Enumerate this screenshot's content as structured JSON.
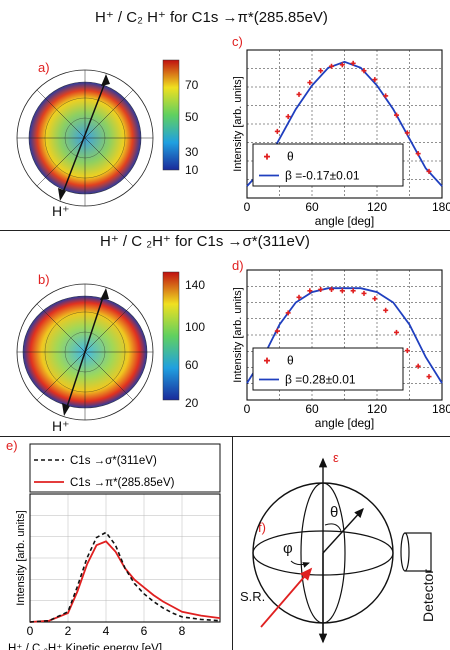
{
  "titles": {
    "top": "H⁺ / C₂ H⁺ for C1s →π*(285.85eV)",
    "middle": "H⁺ / C ₂H⁺ for C1s →σ*(311eV)"
  },
  "panel_labels": {
    "a": "a)",
    "b": "b)",
    "c": "c)",
    "d": "d)",
    "e": "e)",
    "f": "f)"
  },
  "colors": {
    "red_marker": "#e02020",
    "blue_fit": "#1f3fbf",
    "panel_label": "#e02020"
  },
  "panel_a": {
    "ion_label": "H⁺",
    "colorbar_ticks": [
      "70",
      "50",
      "30",
      "10"
    ]
  },
  "panel_b": {
    "ion_label": "H⁺",
    "colorbar_ticks": [
      "140",
      "100",
      "60",
      "20"
    ]
  },
  "panel_f": {
    "epsilon": "ε",
    "theta": "θ",
    "phi": "φ",
    "sr": "S.R.",
    "detector": "Detector"
  },
  "chart_data": [
    {
      "id": "c",
      "type": "scatter",
      "xlabel": "angle [deg]",
      "ylabel": "Intensity [arb. units]",
      "xlim": [
        0,
        180
      ],
      "ylim": [
        0,
        1.0
      ],
      "xticks": [
        "0",
        "60",
        "120",
        "180"
      ],
      "grid": true,
      "legend": {
        "placement": "bottom-left",
        "entries": [
          "θ",
          "β =-0.17±0.01"
        ]
      },
      "series": [
        {
          "name": "θ",
          "style": "points",
          "x": [
            8,
            18,
            28,
            38,
            48,
            58,
            68,
            78,
            88,
            98,
            108,
            118,
            128,
            138,
            148,
            158,
            168
          ],
          "y": [
            0.17,
            0.26,
            0.45,
            0.55,
            0.7,
            0.78,
            0.86,
            0.89,
            0.9,
            0.91,
            0.86,
            0.8,
            0.69,
            0.56,
            0.44,
            0.3,
            0.18
          ]
        },
        {
          "name": "β =-0.17±0.01",
          "style": "line",
          "x": [
            0,
            15,
            30,
            45,
            60,
            75,
            90,
            105,
            120,
            135,
            150,
            165,
            180
          ],
          "y": [
            0.08,
            0.2,
            0.4,
            0.6,
            0.76,
            0.88,
            0.92,
            0.88,
            0.76,
            0.6,
            0.4,
            0.2,
            0.08
          ]
        }
      ]
    },
    {
      "id": "d",
      "type": "scatter",
      "xlabel": "angle [deg]",
      "ylabel": "Intensity [arb. units]",
      "xlim": [
        0,
        180
      ],
      "ylim": [
        0,
        1.0
      ],
      "xticks": [
        "0",
        "60",
        "120",
        "180"
      ],
      "grid": true,
      "legend": {
        "placement": "bottom-left",
        "entries": [
          "θ",
          "β =0.28±0.01"
        ]
      },
      "series": [
        {
          "name": "θ",
          "style": "points",
          "x": [
            8,
            18,
            28,
            38,
            48,
            58,
            68,
            78,
            88,
            98,
            108,
            118,
            128,
            138,
            148,
            158,
            168
          ],
          "y": [
            0.24,
            0.38,
            0.53,
            0.67,
            0.79,
            0.84,
            0.85,
            0.85,
            0.84,
            0.84,
            0.82,
            0.78,
            0.69,
            0.52,
            0.38,
            0.26,
            0.18
          ]
        },
        {
          "name": "β =0.28±0.01",
          "style": "line",
          "x": [
            0,
            15,
            30,
            45,
            60,
            75,
            90,
            105,
            120,
            135,
            150,
            165,
            180
          ],
          "y": [
            0.13,
            0.33,
            0.58,
            0.75,
            0.83,
            0.86,
            0.86,
            0.86,
            0.83,
            0.75,
            0.58,
            0.33,
            0.13
          ]
        }
      ]
    },
    {
      "id": "e",
      "type": "line",
      "xlabel": "H⁺ / C ₂H⁺ Kinetic energy [eV]",
      "ylabel": "Intensity [arb. units]",
      "xlim": [
        0,
        10
      ],
      "ylim": [
        0,
        1.0
      ],
      "xticks": [
        "0",
        "2",
        "4",
        "6",
        "8"
      ],
      "grid": true,
      "legend": {
        "placement": "top",
        "entries": [
          "C1s →σ*(311eV)",
          "C1s →π*(285.85eV)"
        ]
      },
      "series": [
        {
          "name": "C1s →σ*(311eV)",
          "style": "dashed",
          "x": [
            0,
            1,
            2,
            2.5,
            3,
            3.5,
            4,
            4.5,
            5,
            5.5,
            6,
            6.5,
            7,
            7.5,
            8,
            9,
            10
          ],
          "y": [
            0,
            0.01,
            0.08,
            0.28,
            0.5,
            0.66,
            0.7,
            0.6,
            0.42,
            0.3,
            0.22,
            0.16,
            0.11,
            0.07,
            0.04,
            0.02,
            0.01
          ]
        },
        {
          "name": "C1s →π*(285.85eV)",
          "style": "solid",
          "x": [
            0,
            1,
            2,
            2.5,
            3,
            3.5,
            4,
            4.5,
            5,
            5.5,
            6,
            6.5,
            7,
            7.5,
            8,
            9,
            10
          ],
          "y": [
            0,
            0.01,
            0.07,
            0.24,
            0.45,
            0.6,
            0.63,
            0.55,
            0.42,
            0.33,
            0.27,
            0.21,
            0.16,
            0.12,
            0.08,
            0.05,
            0.03
          ]
        }
      ]
    }
  ]
}
